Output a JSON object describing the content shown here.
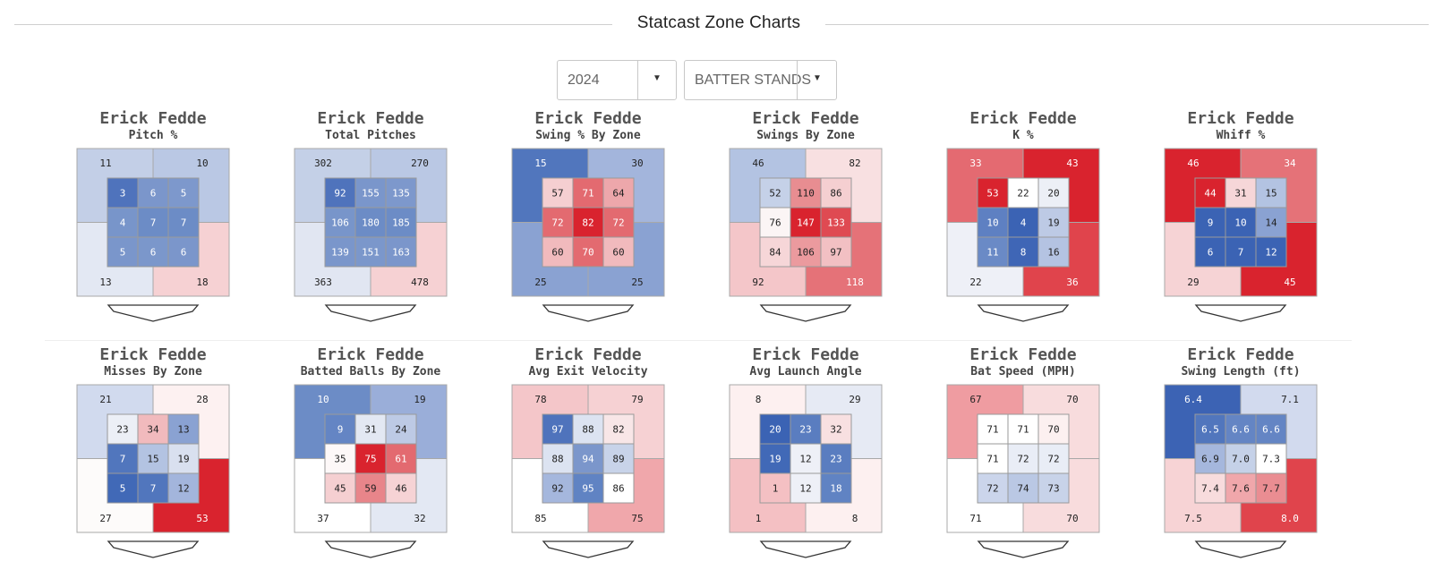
{
  "header": {
    "title": "Statcast Zone Charts"
  },
  "filters": {
    "year": {
      "value": "2024"
    },
    "batter_stands": {
      "value": "BATTER STANDS"
    }
  },
  "chart_data": [
    {
      "type": "heatmap",
      "player": "Erick Fedde",
      "title": "Pitch %",
      "outer": [
        "11",
        "10",
        "13",
        "18"
      ],
      "inner": [
        "3",
        "6",
        "5",
        "4",
        "7",
        "7",
        "5",
        "6",
        "6"
      ],
      "outer_colors": [
        "#c3cfe7",
        "#bac8e4",
        "#e3e8f3",
        "#f6d1d3"
      ],
      "inner_colors": [
        "#4f73bc",
        "#7b96cb",
        "#7d98cc",
        "#7895ca",
        "#6c8cc6",
        "#6c8cc6",
        "#7a96cb",
        "#7b97cb",
        "#7b96cb"
      ]
    },
    {
      "type": "heatmap",
      "player": "Erick Fedde",
      "title": "Total Pitches",
      "outer": [
        "302",
        "270",
        "363",
        "478"
      ],
      "inner": [
        "92",
        "155",
        "135",
        "106",
        "180",
        "185",
        "139",
        "151",
        "163"
      ],
      "outer_colors": [
        "#c4d0e7",
        "#bac8e4",
        "#e1e6f2",
        "#f6d1d3"
      ],
      "inner_colors": [
        "#4f73bc",
        "#7a96cb",
        "#7d98cc",
        "#7895ca",
        "#6c8cc6",
        "#6c8cc6",
        "#7a96cb",
        "#7b97cb",
        "#7b96cb"
      ]
    },
    {
      "type": "heatmap",
      "player": "Erick Fedde",
      "title": "Swing % By Zone",
      "outer": [
        "15",
        "30",
        "25",
        "25"
      ],
      "inner": [
        "57",
        "71",
        "64",
        "72",
        "82",
        "72",
        "60",
        "70",
        "60"
      ],
      "outer_colors": [
        "#5176bd",
        "#a3b5dc",
        "#8aa2d2",
        "#8aa2d2"
      ],
      "inner_colors": [
        "#f5cfd1",
        "#e36a70",
        "#eda7ab",
        "#e36a70",
        "#d9232e",
        "#e36a70",
        "#f1babd",
        "#e36a70",
        "#f1babd"
      ]
    },
    {
      "type": "heatmap",
      "player": "Erick Fedde",
      "title": "Swings By Zone",
      "outer": [
        "46",
        "82",
        "92",
        "118"
      ],
      "inner": [
        "52",
        "110",
        "86",
        "76",
        "147",
        "133",
        "84",
        "106",
        "97"
      ],
      "outer_colors": [
        "#b3c3e2",
        "#f8e0e1",
        "#f4c6c9",
        "#e57278"
      ],
      "inner_colors": [
        "#c5d1e8",
        "#e88d91",
        "#f5cfd1",
        "#fbf5f5",
        "#d9232e",
        "#df4a52",
        "#f6d6d8",
        "#eb9a9e",
        "#f2c0c3"
      ]
    },
    {
      "type": "heatmap",
      "player": "Erick Fedde",
      "title": "K %",
      "outer": [
        "33",
        "43",
        "22",
        "36"
      ],
      "inner": [
        "53",
        "22",
        "20",
        "10",
        "4",
        "19",
        "11",
        "8",
        "16"
      ],
      "outer_colors": [
        "#e46a71",
        "#d9232e",
        "#eef0f7",
        "#e0444c"
      ],
      "inner_colors": [
        "#d9232e",
        "#ffffff",
        "#eceff6",
        "#5e80c2",
        "#3b63b4",
        "#bdcae5",
        "#6a8ac6",
        "#3f66b6",
        "#b4c3e2"
      ]
    },
    {
      "type": "heatmap",
      "player": "Erick Fedde",
      "title": "Whiff %",
      "outer": [
        "46",
        "34",
        "29",
        "45"
      ],
      "inner": [
        "44",
        "31",
        "15",
        "9",
        "10",
        "14",
        "6",
        "7",
        "12"
      ],
      "outer_colors": [
        "#d9232e",
        "#e57278",
        "#f6d3d5",
        "#d9232e"
      ],
      "inner_colors": [
        "#d9232e",
        "#f6d6d8",
        "#b3c3e2",
        "#3b63b4",
        "#3b63b4",
        "#8aa2d2",
        "#3b63b4",
        "#3b63b4",
        "#3b63b4"
      ]
    },
    {
      "type": "heatmap",
      "player": "Erick Fedde",
      "title": "Misses By Zone",
      "outer": [
        "21",
        "28",
        "27",
        "53"
      ],
      "inner": [
        "23",
        "34",
        "13",
        "7",
        "15",
        "19",
        "5",
        "7",
        "12"
      ],
      "outer_colors": [
        "#d1daee",
        "#fdf1f1",
        "#fdfbfa",
        "#d9232e"
      ],
      "inner_colors": [
        "#eceff6",
        "#f1babd",
        "#8aa2d2",
        "#5176bd",
        "#b3c3e2",
        "#d9e0ef",
        "#4169b7",
        "#5176bd",
        "#a3b5dc"
      ]
    },
    {
      "type": "heatmap",
      "player": "Erick Fedde",
      "title": "Batted Balls By Zone",
      "outer": [
        "10",
        "19",
        "37",
        "32"
      ],
      "inner": [
        "9",
        "31",
        "24",
        "35",
        "75",
        "61",
        "45",
        "59",
        "46"
      ],
      "outer_colors": [
        "#6c8cc6",
        "#9aaed9",
        "#ffffff",
        "#e3e8f3"
      ],
      "inner_colors": [
        "#6485c4",
        "#e3e8f3",
        "#bdcae5",
        "#fdf8f8",
        "#d9232e",
        "#e36a70",
        "#f5cfd1",
        "#e8858a",
        "#f6d3d5"
      ]
    },
    {
      "type": "heatmap",
      "player": "Erick Fedde",
      "title": "Avg Exit Velocity",
      "outer": [
        "78",
        "79",
        "85",
        "75"
      ],
      "inner": [
        "97",
        "88",
        "82",
        "88",
        "94",
        "89",
        "92",
        "95",
        "86"
      ],
      "outer_colors": [
        "#f4c6c9",
        "#f6d1d3",
        "#ffffff",
        "#f0a7ab"
      ],
      "inner_colors": [
        "#4f73bc",
        "#dce3f1",
        "#f8e6e7",
        "#dce3f1",
        "#7b96cb",
        "#c8d3e9",
        "#a5b7dd",
        "#6083c3",
        "#ffffff"
      ]
    },
    {
      "type": "heatmap",
      "player": "Erick Fedde",
      "title": "Avg Launch Angle",
      "outer": [
        "8",
        "29",
        "1",
        "8"
      ],
      "inner": [
        "20",
        "23",
        "32",
        "19",
        "12",
        "23",
        "1",
        "12",
        "18"
      ],
      "outer_colors": [
        "#fdf0f0",
        "#e6eaf4",
        "#f4c0c3",
        "#fdf0f0"
      ],
      "inner_colors": [
        "#3b63b4",
        "#5a7dc0",
        "#f8e0e1",
        "#4169b7",
        "#eef0f7",
        "#5a7dc0",
        "#f4c0c3",
        "#eef0f7",
        "#6083c3"
      ]
    },
    {
      "type": "heatmap",
      "player": "Erick Fedde",
      "title": "Bat Speed (MPH)",
      "outer": [
        "67",
        "70",
        "71",
        "70"
      ],
      "inner": [
        "71",
        "71",
        "70",
        "71",
        "72",
        "72",
        "72",
        "74",
        "73"
      ],
      "outer_colors": [
        "#ef9ca1",
        "#f8dcdd",
        "#ffffff",
        "#f8dcdd"
      ],
      "inner_colors": [
        "#ffffff",
        "#ffffff",
        "#fcf0f0",
        "#ffffff",
        "#e9edf6",
        "#e9edf6",
        "#cbd5eb",
        "#bac8e4",
        "#c8d3e9"
      ]
    },
    {
      "type": "heatmap",
      "player": "Erick Fedde",
      "title": "Swing Length (ft)",
      "outer": [
        "6.4",
        "7.1",
        "7.5",
        "8.0"
      ],
      "inner": [
        "6.5",
        "6.6",
        "6.6",
        "6.9",
        "7.0",
        "7.3",
        "7.4",
        "7.6",
        "7.7"
      ],
      "outer_colors": [
        "#3c63b4",
        "#d2daee",
        "#f7d3d5",
        "#e0444c"
      ],
      "inner_colors": [
        "#5176bd",
        "#6485c4",
        "#6485c4",
        "#a5b7dd",
        "#c5d1e8",
        "#ffffff",
        "#f8dcdd",
        "#f0a7ab",
        "#ea8d92"
      ]
    }
  ]
}
